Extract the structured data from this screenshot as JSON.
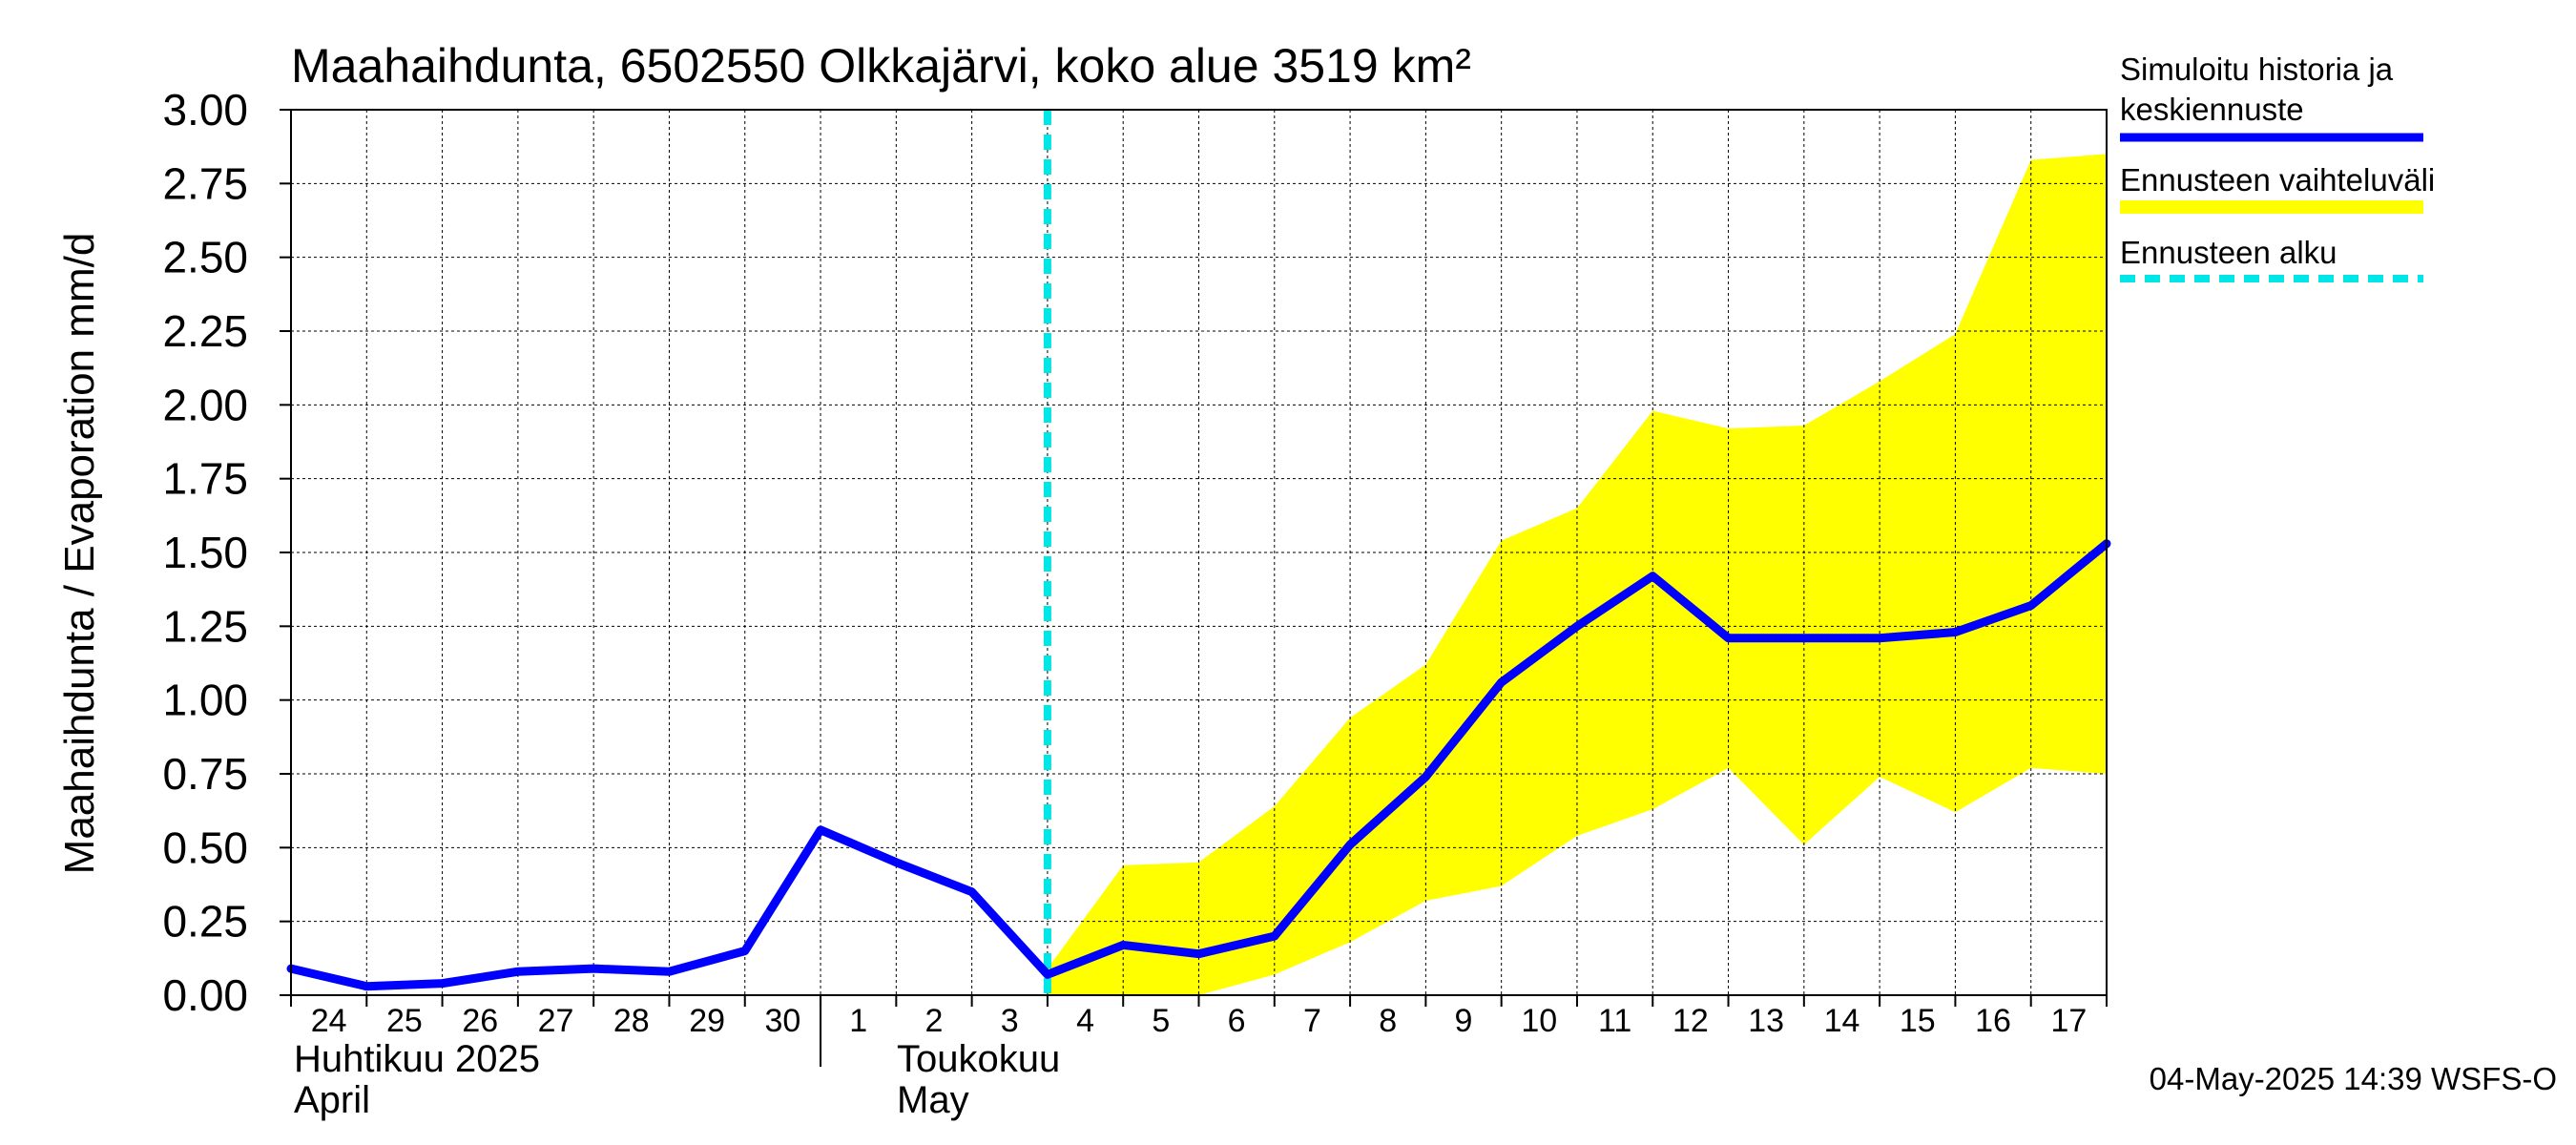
{
  "chart_data": {
    "type": "line",
    "title": "Maahaihdunta, 6502550 Olkkajärvi, koko alue 3519 km²",
    "ylabel": "Maahaihdunta / Evaporation   mm/d",
    "ylim": [
      0,
      3
    ],
    "yticks": [
      "0.00",
      "0.25",
      "0.50",
      "0.75",
      "1.00",
      "1.25",
      "1.50",
      "1.75",
      "2.00",
      "2.25",
      "2.50",
      "2.75",
      "3.00"
    ],
    "x_tick_labels": [
      "24",
      "25",
      "26",
      "27",
      "28",
      "29",
      "30",
      "1",
      "2",
      "3",
      "4",
      "5",
      "6",
      "7",
      "8",
      "9",
      "10",
      "11",
      "12",
      "13",
      "14",
      "15",
      "16",
      "17"
    ],
    "month_labels": [
      {
        "fi": "Huhtikuu  2025",
        "en": "April"
      },
      {
        "fi": "Toukokuu",
        "en": "May"
      }
    ],
    "grid": true,
    "legend_position": "right",
    "series": [
      {
        "name": "Simuloitu historia ja keskiennuste",
        "color": "#0000ff",
        "points": [
          [
            0,
            0.09
          ],
          [
            1,
            0.03
          ],
          [
            2,
            0.04
          ],
          [
            3,
            0.08
          ],
          [
            4,
            0.09
          ],
          [
            5,
            0.08
          ],
          [
            6,
            0.15
          ],
          [
            7,
            0.56
          ],
          [
            8,
            0.45
          ],
          [
            9,
            0.35
          ],
          [
            10,
            0.07
          ],
          [
            11,
            0.17
          ],
          [
            12,
            0.14
          ],
          [
            13,
            0.2
          ],
          [
            14,
            0.51
          ],
          [
            15,
            0.74
          ],
          [
            16,
            1.06
          ],
          [
            17,
            1.25
          ],
          [
            18,
            1.42
          ],
          [
            19,
            1.21
          ],
          [
            20,
            1.21
          ],
          [
            21,
            1.21
          ],
          [
            22,
            1.23
          ],
          [
            23,
            1.32
          ],
          [
            24,
            1.53
          ]
        ]
      }
    ],
    "band": {
      "name": "Ennusteen vaihteluväli",
      "color": "#ffff00",
      "upper": [
        [
          10,
          0.09
        ],
        [
          11,
          0.44
        ],
        [
          12,
          0.45
        ],
        [
          13,
          0.64
        ],
        [
          14,
          0.94
        ],
        [
          15,
          1.12
        ],
        [
          16,
          1.54
        ],
        [
          17,
          1.65
        ],
        [
          18,
          1.98
        ],
        [
          19,
          1.92
        ],
        [
          20,
          1.93
        ],
        [
          21,
          2.08
        ],
        [
          22,
          2.24
        ],
        [
          23,
          2.83
        ],
        [
          24,
          2.85
        ]
      ],
      "lower": [
        [
          10,
          0.0
        ],
        [
          11,
          0.0
        ],
        [
          12,
          0.0
        ],
        [
          13,
          0.07
        ],
        [
          14,
          0.18
        ],
        [
          15,
          0.32
        ],
        [
          16,
          0.37
        ],
        [
          17,
          0.54
        ],
        [
          18,
          0.63
        ],
        [
          19,
          0.77
        ],
        [
          20,
          0.51
        ],
        [
          21,
          0.74
        ],
        [
          22,
          0.62
        ],
        [
          23,
          0.77
        ],
        [
          24,
          0.75
        ]
      ]
    },
    "forecast_start": {
      "name": "Ennusteen alku",
      "x": 10,
      "color": "#00e5e5"
    },
    "legend_entries": [
      "Simuloitu historia ja",
      "keskiennuste",
      "Ennusteen vaihteluväli",
      "Ennusteen alku"
    ],
    "footer": "04-May-2025 14:39 WSFS-O"
  }
}
